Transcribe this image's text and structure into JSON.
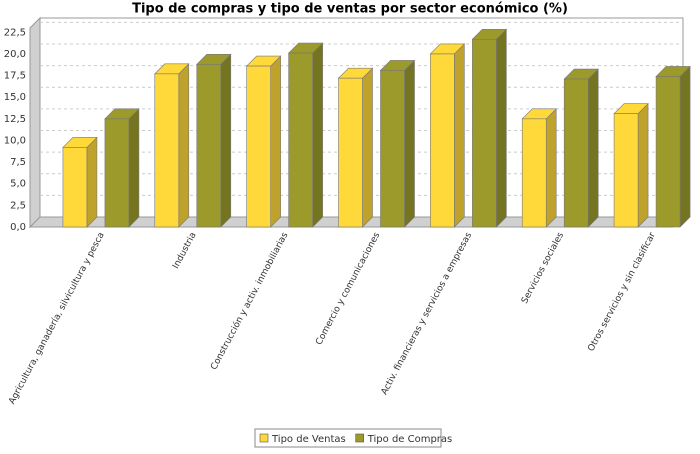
{
  "chart_data": {
    "type": "bar3d",
    "title": "Tipo de compras y tipo de ventas por sector económico (%)",
    "categories": [
      "Agricultura, ganadería, silvicultura y pesca",
      "Industria",
      "Construcción y activ. inmobiliarias",
      "Comercio y comunicaciones",
      "Activ. financieras y servicios a empresas",
      "Servicios sociales",
      "Otros servicios y sin clasificar"
    ],
    "series": [
      {
        "name": "Tipo de Ventas",
        "color": "#ffd83a",
        "values": [
          9.2,
          17.7,
          18.6,
          17.2,
          20.0,
          12.5,
          13.1
        ]
      },
      {
        "name": "Tipo de Compras",
        "color": "#9c9a2a",
        "values": [
          12.5,
          18.8,
          20.1,
          18.1,
          21.7,
          17.1,
          17.4
        ]
      }
    ],
    "ylim": [
      0,
      23
    ],
    "yticks": [
      {
        "value": 0,
        "label": "0,0"
      },
      {
        "value": 2.5,
        "label": "2,5"
      },
      {
        "value": 5,
        "label": "5,0"
      },
      {
        "value": 7.5,
        "label": "7,5"
      },
      {
        "value": 10,
        "label": "10,0"
      },
      {
        "value": 12.5,
        "label": "12,5"
      },
      {
        "value": 15,
        "label": "15,0"
      },
      {
        "value": 17.5,
        "label": "17,5"
      },
      {
        "value": 20,
        "label": "20,0"
      },
      {
        "value": 22.5,
        "label": "22,5"
      }
    ],
    "grid": true,
    "legend": "bottom"
  }
}
